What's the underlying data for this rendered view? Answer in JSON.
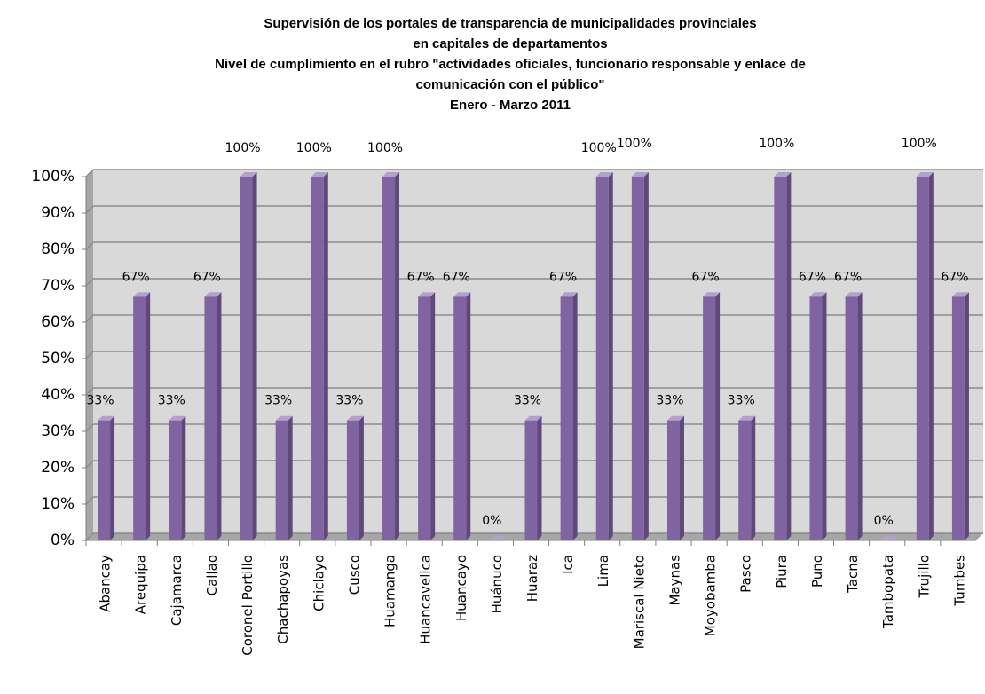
{
  "chart_data": {
    "type": "bar",
    "title": [
      "Supervisión de los portales de transparencia de municipalidades provinciales",
      "en capitales de departamentos",
      "Nivel de cumplimiento en el rubro  \"actividades oficiales, funcionario responsable  y enlace de",
      "comunicación con el público\"",
      "Enero - Marzo 2011"
    ],
    "categories": [
      "Abancay",
      "Arequipa",
      "Cajamarca",
      "Callao",
      "Coronel Portillo",
      "Chachapoyas",
      "Chiclayo",
      "Cusco",
      "Huamanga",
      "Huancavelica",
      "Huancayo",
      "Huánuco",
      "Huaraz",
      "Ica",
      "Lima",
      "Mariscal Nieto",
      "Maynas",
      "Moyobamba",
      "Pasco",
      "Piura",
      "Puno",
      "Tacna",
      "Tambopata",
      "Trujillo",
      "Tumbes"
    ],
    "values": [
      33,
      67,
      33,
      67,
      100,
      33,
      100,
      33,
      100,
      67,
      67,
      0,
      33,
      67,
      100,
      100,
      33,
      67,
      33,
      100,
      67,
      67,
      0,
      100,
      67
    ],
    "value_labels": [
      "33%",
      "67%",
      "33%",
      "67%",
      "100%",
      "33%",
      "100%",
      "33%",
      "100%",
      "67%",
      "67%",
      "0%",
      "33%",
      "67%",
      "100%",
      "100%",
      "33%",
      "67%",
      "33%",
      "100%",
      "67%",
      "67%",
      "0%",
      "100%",
      "67%"
    ],
    "color": "#8064a2",
    "ylim": [
      0,
      100
    ],
    "yticks": [
      {
        "value": 0,
        "label": "0%"
      },
      {
        "value": 10,
        "label": "10%"
      },
      {
        "value": 20,
        "label": "20%"
      },
      {
        "value": 30,
        "label": "30%"
      },
      {
        "value": 40,
        "label": "40%"
      },
      {
        "value": 50,
        "label": "50%"
      },
      {
        "value": 60,
        "label": "60%"
      },
      {
        "value": 70,
        "label": "70%"
      },
      {
        "value": 80,
        "label": "80%"
      },
      {
        "value": 90,
        "label": "90%"
      },
      {
        "value": 100,
        "label": "100%"
      }
    ],
    "grid": true
  }
}
